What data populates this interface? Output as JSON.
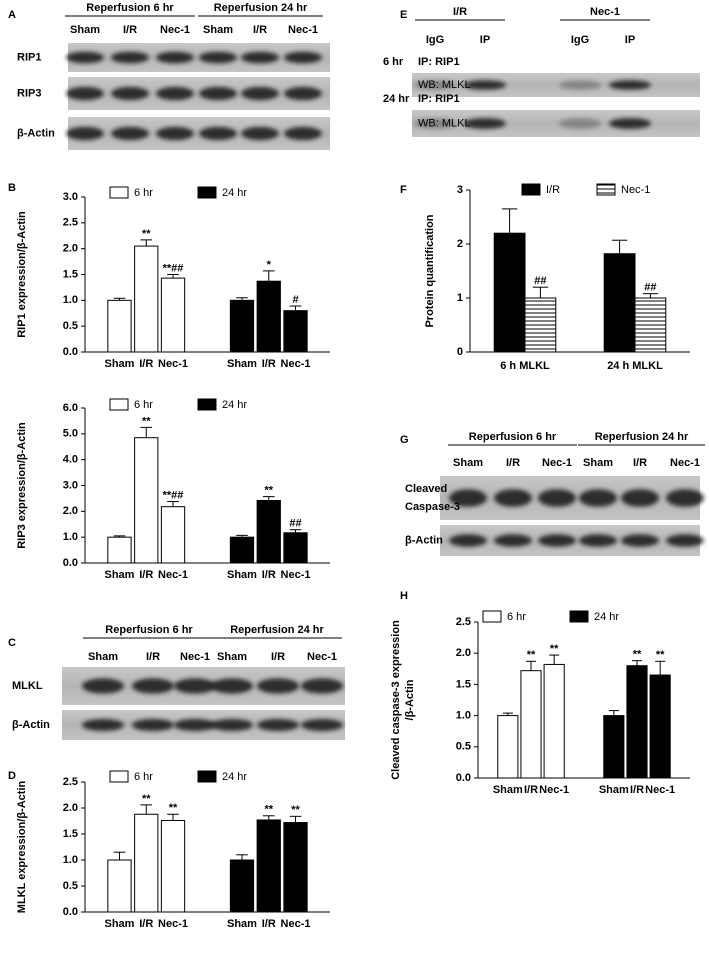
{
  "chart_data": [
    {
      "type": "bar",
      "panel": "B",
      "ylabel": "RIP1 expression/β-Actin",
      "categories": [
        "Sham",
        "I/R",
        "Nec-1"
      ],
      "series": [
        {
          "name": "6 hr",
          "color": "#ffffff",
          "values": [
            1.0,
            2.05,
            1.43
          ],
          "errors": [
            0.04,
            0.12,
            0.07
          ],
          "annotations": [
            null,
            "**",
            "**##"
          ]
        },
        {
          "name": "24 hr",
          "color": "#000000",
          "values": [
            1.0,
            1.37,
            0.8
          ],
          "errors": [
            0.05,
            0.2,
            0.09
          ],
          "annotations": [
            null,
            "*",
            "#"
          ]
        }
      ],
      "ylim": [
        0,
        3
      ],
      "yticks": [
        {
          "value": 0,
          "label": "0.0"
        },
        0.5,
        {
          "value": 1,
          "label": "1.0"
        },
        1.5,
        {
          "value": 2,
          "label": "2.0"
        },
        2.5,
        {
          "value": 3,
          "label": "3.0"
        }
      ]
    },
    {
      "type": "bar",
      "ylabel": "RIP3 expression/β-Actin",
      "categories": [
        "Sham",
        "I/R",
        "Nec-1"
      ],
      "series": [
        {
          "name": "6 hr",
          "color": "#ffffff",
          "values": [
            1.0,
            4.85,
            2.18
          ],
          "errors": [
            0.05,
            0.4,
            0.2
          ],
          "annotations": [
            null,
            "**",
            "**##"
          ]
        },
        {
          "name": "24 hr",
          "color": "#000000",
          "values": [
            1.0,
            2.42,
            1.17
          ],
          "errors": [
            0.07,
            0.15,
            0.12
          ],
          "annotations": [
            null,
            "**",
            "##"
          ]
        }
      ],
      "ylim": [
        0,
        6
      ],
      "yticks": [
        {
          "value": 0,
          "label": "0.0"
        },
        {
          "value": 1,
          "label": "1.0"
        },
        {
          "value": 2,
          "label": "2.0"
        },
        {
          "value": 3,
          "label": "3.0"
        },
        {
          "value": 4,
          "label": "4.0"
        },
        {
          "value": 5,
          "label": "5.0"
        },
        {
          "value": 6,
          "label": "6.0"
        }
      ]
    },
    {
      "type": "bar",
      "panel": "D",
      "ylabel": "MLKL expression/β-Actin",
      "categories": [
        "Sham",
        "I/R",
        "Nec-1"
      ],
      "series": [
        {
          "name": "6 hr",
          "color": "#ffffff",
          "values": [
            1.0,
            1.88,
            1.76
          ],
          "errors": [
            0.15,
            0.18,
            0.12
          ],
          "annotations": [
            null,
            "**",
            "**"
          ]
        },
        {
          "name": "24 hr",
          "color": "#000000",
          "values": [
            1.0,
            1.77,
            1.72
          ],
          "errors": [
            0.1,
            0.08,
            0.12
          ],
          "annotations": [
            null,
            "**",
            "**"
          ]
        }
      ],
      "ylim": [
        0,
        2.5
      ],
      "yticks": [
        {
          "value": 0,
          "label": "0.0"
        },
        0.5,
        {
          "value": 1,
          "label": "1.0"
        },
        1.5,
        {
          "value": 2,
          "label": "2.0"
        },
        2.5
      ]
    },
    {
      "type": "bar",
      "panel": "F",
      "ylabel": "Protein quantification",
      "categories": [
        "6 h MLKL",
        "24 h MLKL"
      ],
      "series": [
        {
          "name": "I/R",
          "color": "#000000",
          "values": [
            2.2,
            1.82
          ],
          "errors": [
            0.45,
            0.25
          ]
        },
        {
          "name": "Nec-1",
          "color": "#ffffff",
          "hatch": true,
          "values": [
            1.0,
            1.0
          ],
          "errors": [
            0.2,
            0.08
          ],
          "annotations": [
            "##",
            "##"
          ]
        }
      ],
      "ylim": [
        0,
        3
      ],
      "yticks": [
        0,
        1,
        2,
        3
      ]
    },
    {
      "type": "bar",
      "panel": "H",
      "ylabel": [
        "Cleaved caspase-3 expression",
        "/β-Actin"
      ],
      "categories": [
        "Sham",
        "I/R",
        "Nec-1"
      ],
      "series": [
        {
          "name": "6 hr",
          "color": "#ffffff",
          "values": [
            1.0,
            1.72,
            1.82
          ],
          "errors": [
            0.04,
            0.15,
            0.15
          ],
          "annotations": [
            null,
            "**",
            "**"
          ]
        },
        {
          "name": "24 hr",
          "color": "#000000",
          "values": [
            1.0,
            1.8,
            1.65
          ],
          "errors": [
            0.08,
            0.08,
            0.22
          ],
          "annotations": [
            null,
            "**",
            "**"
          ]
        }
      ],
      "ylim": [
        0,
        2.5
      ],
      "yticks": [
        {
          "value": 0,
          "label": "0.0"
        },
        0.5,
        {
          "value": 1,
          "label": "1.0"
        },
        1.5,
        {
          "value": 2,
          "label": "2.0"
        },
        2.5
      ]
    }
  ],
  "blots": [
    {
      "panel": "A",
      "headers": [
        "Reperfusion 6 hr",
        "Reperfusion 24 hr"
      ],
      "lanes": [
        "Sham",
        "I/R",
        "Nec-1",
        "Sham",
        "I/R",
        "Nec-1"
      ],
      "rows": [
        "RIP1",
        "RIP3",
        "β-Actin"
      ]
    },
    {
      "panel": "C",
      "headers": [
        "Reperfusion 6 hr",
        "Reperfusion 24 hr"
      ],
      "lanes": [
        "Sham",
        "I/R",
        "Nec-1",
        "Sham",
        "I/R",
        "Nec-1"
      ],
      "rows": [
        "MLKL",
        "β-Actin"
      ]
    },
    {
      "panel": "E",
      "headers": [
        "I/R",
        "Nec-1"
      ],
      "lanes": [
        "IgG",
        "IP",
        "IgG",
        "IP"
      ],
      "rows": [
        {
          "time": "6 hr",
          "ip": "IP: RIP1",
          "wb": "WB: MLKL"
        },
        {
          "time": "24 hr",
          "ip": "IP: RIP1",
          "wb": "WB: MLKL"
        }
      ]
    },
    {
      "panel": "G",
      "headers": [
        "Reperfusion 6 hr",
        "Reperfusion 24 hr"
      ],
      "lanes": [
        "Sham",
        "I/R",
        "Nec-1",
        "Sham",
        "I/R",
        "Nec-1"
      ],
      "rows": [
        [
          "Cleaved",
          "Caspase-3"
        ],
        "β-Actin"
      ]
    }
  ]
}
